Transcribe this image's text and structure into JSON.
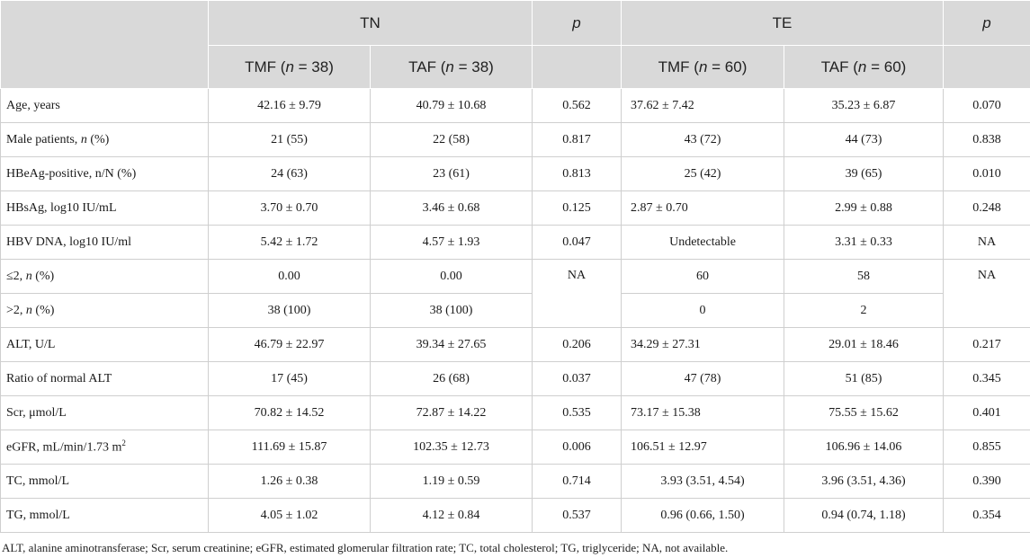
{
  "header": {
    "group_tn": "TN",
    "group_te": "TE",
    "p_label": "p",
    "tn_tmf": "TMF (",
    "tn_tmf_n": "n",
    "tn_tmf_count": " = 38)",
    "tn_taf": "TAF (",
    "tn_taf_n": "n",
    "tn_taf_count": " = 38)",
    "te_tmf": "TMF (",
    "te_tmf_n": "n",
    "te_tmf_count": " = 60)",
    "te_taf": "TAF (",
    "te_taf_n": "n",
    "te_taf_count": " = 60)"
  },
  "rows": [
    {
      "label": "Age, years",
      "tn_tmf": "42.16 ± 9.79",
      "tn_taf": "40.79 ± 10.68",
      "tn_p": "0.562",
      "te_tmf": "37.62 ± 7.42",
      "te_taf": "35.23 ± 6.87",
      "te_p": "0.070"
    },
    {
      "label_pre": "Male patients, ",
      "label_it": "n",
      "label_post": " (%)",
      "tn_tmf": "21 (55)",
      "tn_taf": "22 (58)",
      "tn_p": "0.817",
      "te_tmf": "43 (72)",
      "te_taf": "44 (73)",
      "te_p": "0.838"
    },
    {
      "label": "HBeAg-positive, n/N (%)",
      "tn_tmf": "24 (63)",
      "tn_taf": "23 (61)",
      "tn_p": "0.813",
      "te_tmf": "25 (42)",
      "te_taf": "39 (65)",
      "te_p": "0.010"
    },
    {
      "label": "HBsAg, log10 IU/mL",
      "tn_tmf": "3.70 ± 0.70",
      "tn_taf": "3.46 ± 0.68",
      "tn_p": "0.125",
      "te_tmf": "2.87 ± 0.70",
      "te_taf": "2.99 ± 0.88",
      "te_p": "0.248"
    },
    {
      "label": "HBV DNA, log10 IU/ml",
      "tn_tmf": "5.42 ± 1.72",
      "tn_taf": "4.57 ± 1.93",
      "tn_p": "0.047",
      "te_tmf": "Undetectable",
      "te_taf": "3.31 ± 0.33",
      "te_p": "NA"
    },
    {
      "label_pre": "≤2, ",
      "label_it": "n",
      "label_post": " (%)",
      "tn_tmf": "0.00",
      "tn_taf": "0.00",
      "tn_p": "NA",
      "te_tmf": "60",
      "te_taf": "58",
      "te_p": "NA"
    },
    {
      "label_pre": ">2, ",
      "label_it": "n",
      "label_post": " (%)",
      "tn_tmf": "38 (100)",
      "tn_taf": "38 (100)",
      "te_tmf": "0",
      "te_taf": "2"
    },
    {
      "label": "ALT, U/L",
      "tn_tmf": "46.79 ± 22.97",
      "tn_taf": "39.34 ± 27.65",
      "tn_p": "0.206",
      "te_tmf": "34.29 ± 27.31",
      "te_taf": "29.01 ± 18.46",
      "te_p": "0.217"
    },
    {
      "label": "Ratio of normal ALT",
      "tn_tmf": "17 (45)",
      "tn_taf": "26 (68)",
      "tn_p": "0.037",
      "te_tmf": "47 (78)",
      "te_taf": "51 (85)",
      "te_p": "0.345"
    },
    {
      "label": "Scr, μmol/L",
      "tn_tmf": "70.82 ± 14.52",
      "tn_taf": "72.87 ± 14.22",
      "tn_p": "0.535",
      "te_tmf": "73.17 ± 15.38",
      "te_taf": "75.55 ± 15.62",
      "te_p": "0.401"
    },
    {
      "label_pre": "eGFR, mL/min/1.73 m",
      "label_sup": "2",
      "tn_tmf": "111.69 ± 15.87",
      "tn_taf": "102.35 ± 12.73",
      "tn_p": "0.006",
      "te_tmf": "106.51 ± 12.97",
      "te_taf": "106.96 ± 14.06",
      "te_p": "0.855"
    },
    {
      "label": "TC, mmol/L",
      "tn_tmf": "1.26 ± 0.38",
      "tn_taf": "1.19 ± 0.59",
      "tn_p": "0.714",
      "te_tmf": "3.93 (3.51, 4.54)",
      "te_taf": "3.96 (3.51, 4.36)",
      "te_p": "0.390"
    },
    {
      "label": "TG, mmol/L",
      "tn_tmf": "4.05 ± 1.02",
      "tn_taf": "4.12 ± 0.84",
      "tn_p": "0.537",
      "te_tmf": "0.96 (0.66, 1.50)",
      "te_taf": "0.94 (0.74, 1.18)",
      "te_p": "0.354"
    }
  ],
  "footnote": "ALT, alanine aminotransferase; Scr, serum creatinine; eGFR, estimated glomerular filtration rate; TC, total cholesterol; TG, triglyceride; NA, not available."
}
